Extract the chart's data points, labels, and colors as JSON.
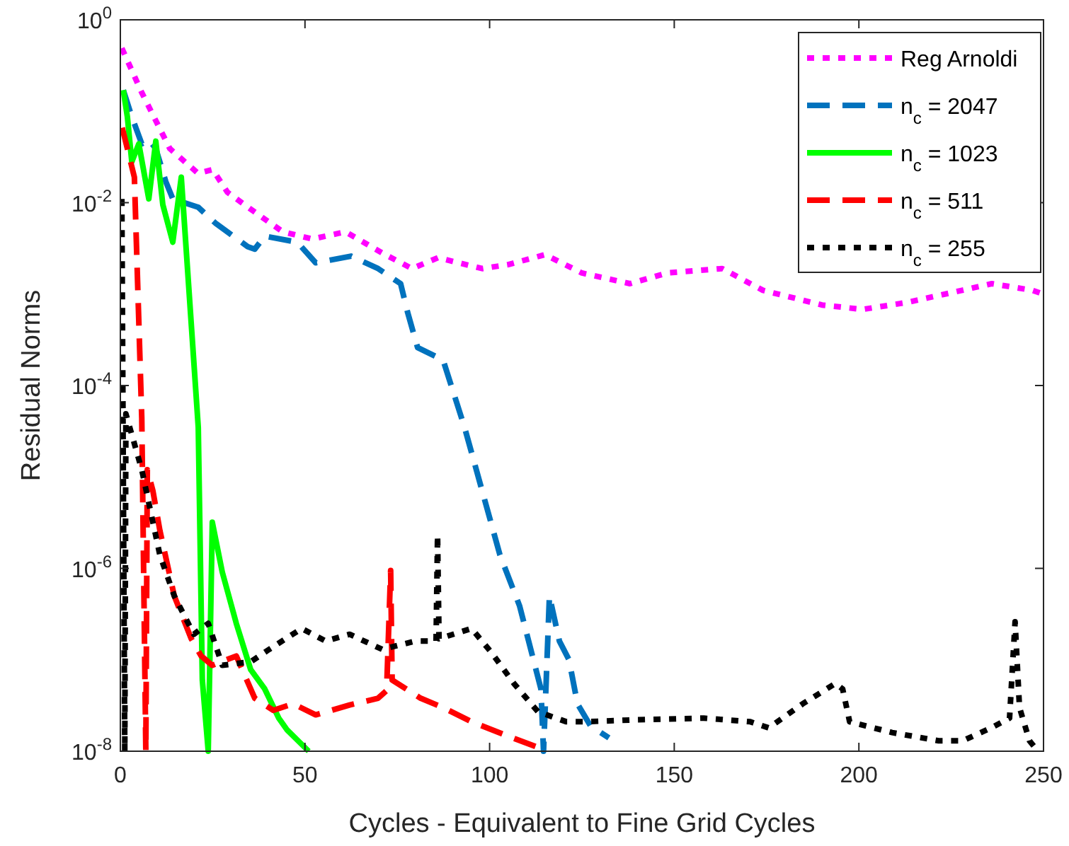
{
  "chart_data": {
    "type": "line",
    "xlabel": "Cycles - Equivalent to Fine Grid Cycles",
    "ylabel": "Residual Norms",
    "xlim": [
      0,
      250
    ],
    "xticks": [
      0,
      50,
      100,
      150,
      200,
      250
    ],
    "ylim": [
      1e-08,
      1
    ],
    "yticks": [
      {
        "value": 1,
        "label": "10$^{0}$"
      },
      {
        "value": 0.01,
        "label": "10$^{-2}$"
      },
      {
        "value": 0.0001,
        "label": "10$^{-4}$"
      },
      {
        "value": 1e-06,
        "label": "10$^{-6}$"
      },
      {
        "value": 1e-08,
        "label": "10$^{-8}$"
      }
    ],
    "log": "y",
    "grid": false,
    "legend": "top right",
    "series": [
      {
        "name": "Reg Arnoldi",
        "color": "#ff00ff",
        "line_style": "dotted",
        "x": [
          0.4,
          5.8,
          13.4,
          21,
          25,
          29,
          36,
          44,
          52,
          61,
          71,
          79,
          86,
          98,
          105,
          115,
          125,
          138,
          148,
          163,
          174,
          190,
          201,
          213,
          228,
          236,
          247,
          250
        ],
        "values": [
          0.49,
          0.16,
          0.039,
          0.021,
          0.023,
          0.013,
          0.0081,
          0.0048,
          0.004,
          0.0048,
          0.0028,
          0.0019,
          0.0025,
          0.0019,
          0.0021,
          0.0027,
          0.0017,
          0.0013,
          0.0017,
          0.0019,
          0.0011,
          0.00076,
          0.00068,
          0.00081,
          0.0011,
          0.0013,
          0.0011,
          0.001
        ]
      },
      {
        "name": "n$_{c}$ = 2047",
        "color": "#0072bd",
        "line_style": "dashed",
        "x": [
          0.8,
          3.1,
          5.8,
          7.7,
          9.6,
          12.3,
          14.2,
          21.1,
          25.7,
          34.5,
          36.4,
          39.1,
          47.9,
          52.9,
          62.5,
          69.8,
          75.9,
          77.8,
          80.5,
          87.4,
          93.2,
          102.8,
          108.1,
          113.9,
          114.6,
          116.2,
          118.9,
          121.5,
          123.8,
          127.3,
          132.3
        ],
        "values": [
          0.17,
          0.087,
          0.044,
          0.049,
          0.039,
          0.017,
          0.011,
          0.0089,
          0.006,
          0.0033,
          0.0031,
          0.0043,
          0.0037,
          0.0022,
          0.0026,
          0.0019,
          0.0013,
          0.00063,
          0.00026,
          0.00019,
          3.5e-05,
          1.4e-06,
          3.9e-07,
          4.8e-08,
          1e-08,
          5e-07,
          1.6e-07,
          1e-07,
          3.3e-08,
          1.9e-08,
          1.4e-08
        ]
      },
      {
        "name": "n$_{c}$ = 1023",
        "color": "#00ff00",
        "line_style": "solid",
        "x": [
          0.8,
          1.9,
          3.1,
          5,
          7.7,
          9.6,
          11.5,
          14.2,
          16.5,
          21.1,
          22.2,
          23.8,
          24.9,
          27.6,
          31.4,
          35.3,
          39.1,
          42.9,
          45.2,
          51
        ],
        "values": [
          0.17,
          0.087,
          0.028,
          0.044,
          0.011,
          0.047,
          0.0095,
          0.0037,
          0.019,
          3.5e-05,
          6e-08,
          1e-08,
          3.2e-06,
          9.1e-07,
          2.5e-07,
          7.8e-08,
          4.8e-08,
          2.3e-08,
          1.7e-08,
          1e-08
        ]
      },
      {
        "name": "n$_{c}$ = 511",
        "color": "#ff0000",
        "line_style": "dashed",
        "x": [
          0.5,
          3.8,
          5.8,
          6.9,
          7.3,
          8.8,
          10.7,
          14.6,
          19.2,
          21.9,
          24.9,
          31.4,
          36.4,
          41.4,
          46.8,
          52.9,
          62.1,
          69.8,
          72.1,
          73.2,
          73.6,
          81.3,
          87.4,
          95.1,
          104.3,
          113.1,
          114.3
        ],
        "values": [
          0.066,
          0.019,
          4.4e-05,
          1e-08,
          1.2e-05,
          7.1e-06,
          2.6e-06,
          5e-07,
          1.7e-07,
          1.1e-07,
          8.7e-08,
          1.1e-07,
          3.8e-08,
          2.8e-08,
          3.3e-08,
          2.5e-08,
          3.2e-08,
          3.8e-08,
          4.6e-08,
          9.5e-07,
          6e-08,
          3.8e-08,
          3e-08,
          2.1e-08,
          1.5e-08,
          1.1e-08,
          1e-08
        ]
      },
      {
        "name": "n$_{c}$ = 255",
        "color": "#000000",
        "line_style": "dotted",
        "x": [
          0.4,
          1.2,
          1.5,
          5.8,
          10.7,
          14.6,
          19.9,
          23.8,
          27.6,
          35.3,
          40.3,
          49.1,
          55.6,
          62.1,
          70.9,
          79.8,
          85.5,
          85.9,
          86.3,
          95.1,
          100.5,
          106.6,
          113.1,
          120.8,
          125.8,
          138.8,
          158,
          170.6,
          175.6,
          184.8,
          193.6,
          195.6,
          197.5,
          209,
          221.6,
          228.1,
          235.8,
          240.8,
          242.3,
          243.5,
          246.2,
          248.5
        ],
        "values": [
          0.011,
          1e-08,
          4.9e-05,
          1.2e-05,
          1.4e-06,
          5e-07,
          1.9e-07,
          2.5e-07,
          8.7e-08,
          9.5e-08,
          1.3e-07,
          2.2e-07,
          1.6e-07,
          1.9e-07,
          1.3e-07,
          1.6e-07,
          1.6e-07,
          2.3e-06,
          1.7e-07,
          2.2e-07,
          1.2e-07,
          5.5e-08,
          2.7e-08,
          2.1e-08,
          2.1e-08,
          2.2e-08,
          2.3e-08,
          2.1e-08,
          1.8e-08,
          3.3e-08,
          5.5e-08,
          4.8e-08,
          2.1e-08,
          1.6e-08,
          1.3e-08,
          1.3e-08,
          1.8e-08,
          2.3e-08,
          2.6e-07,
          3e-08,
          1.3e-08,
          1e-08
        ]
      }
    ]
  }
}
